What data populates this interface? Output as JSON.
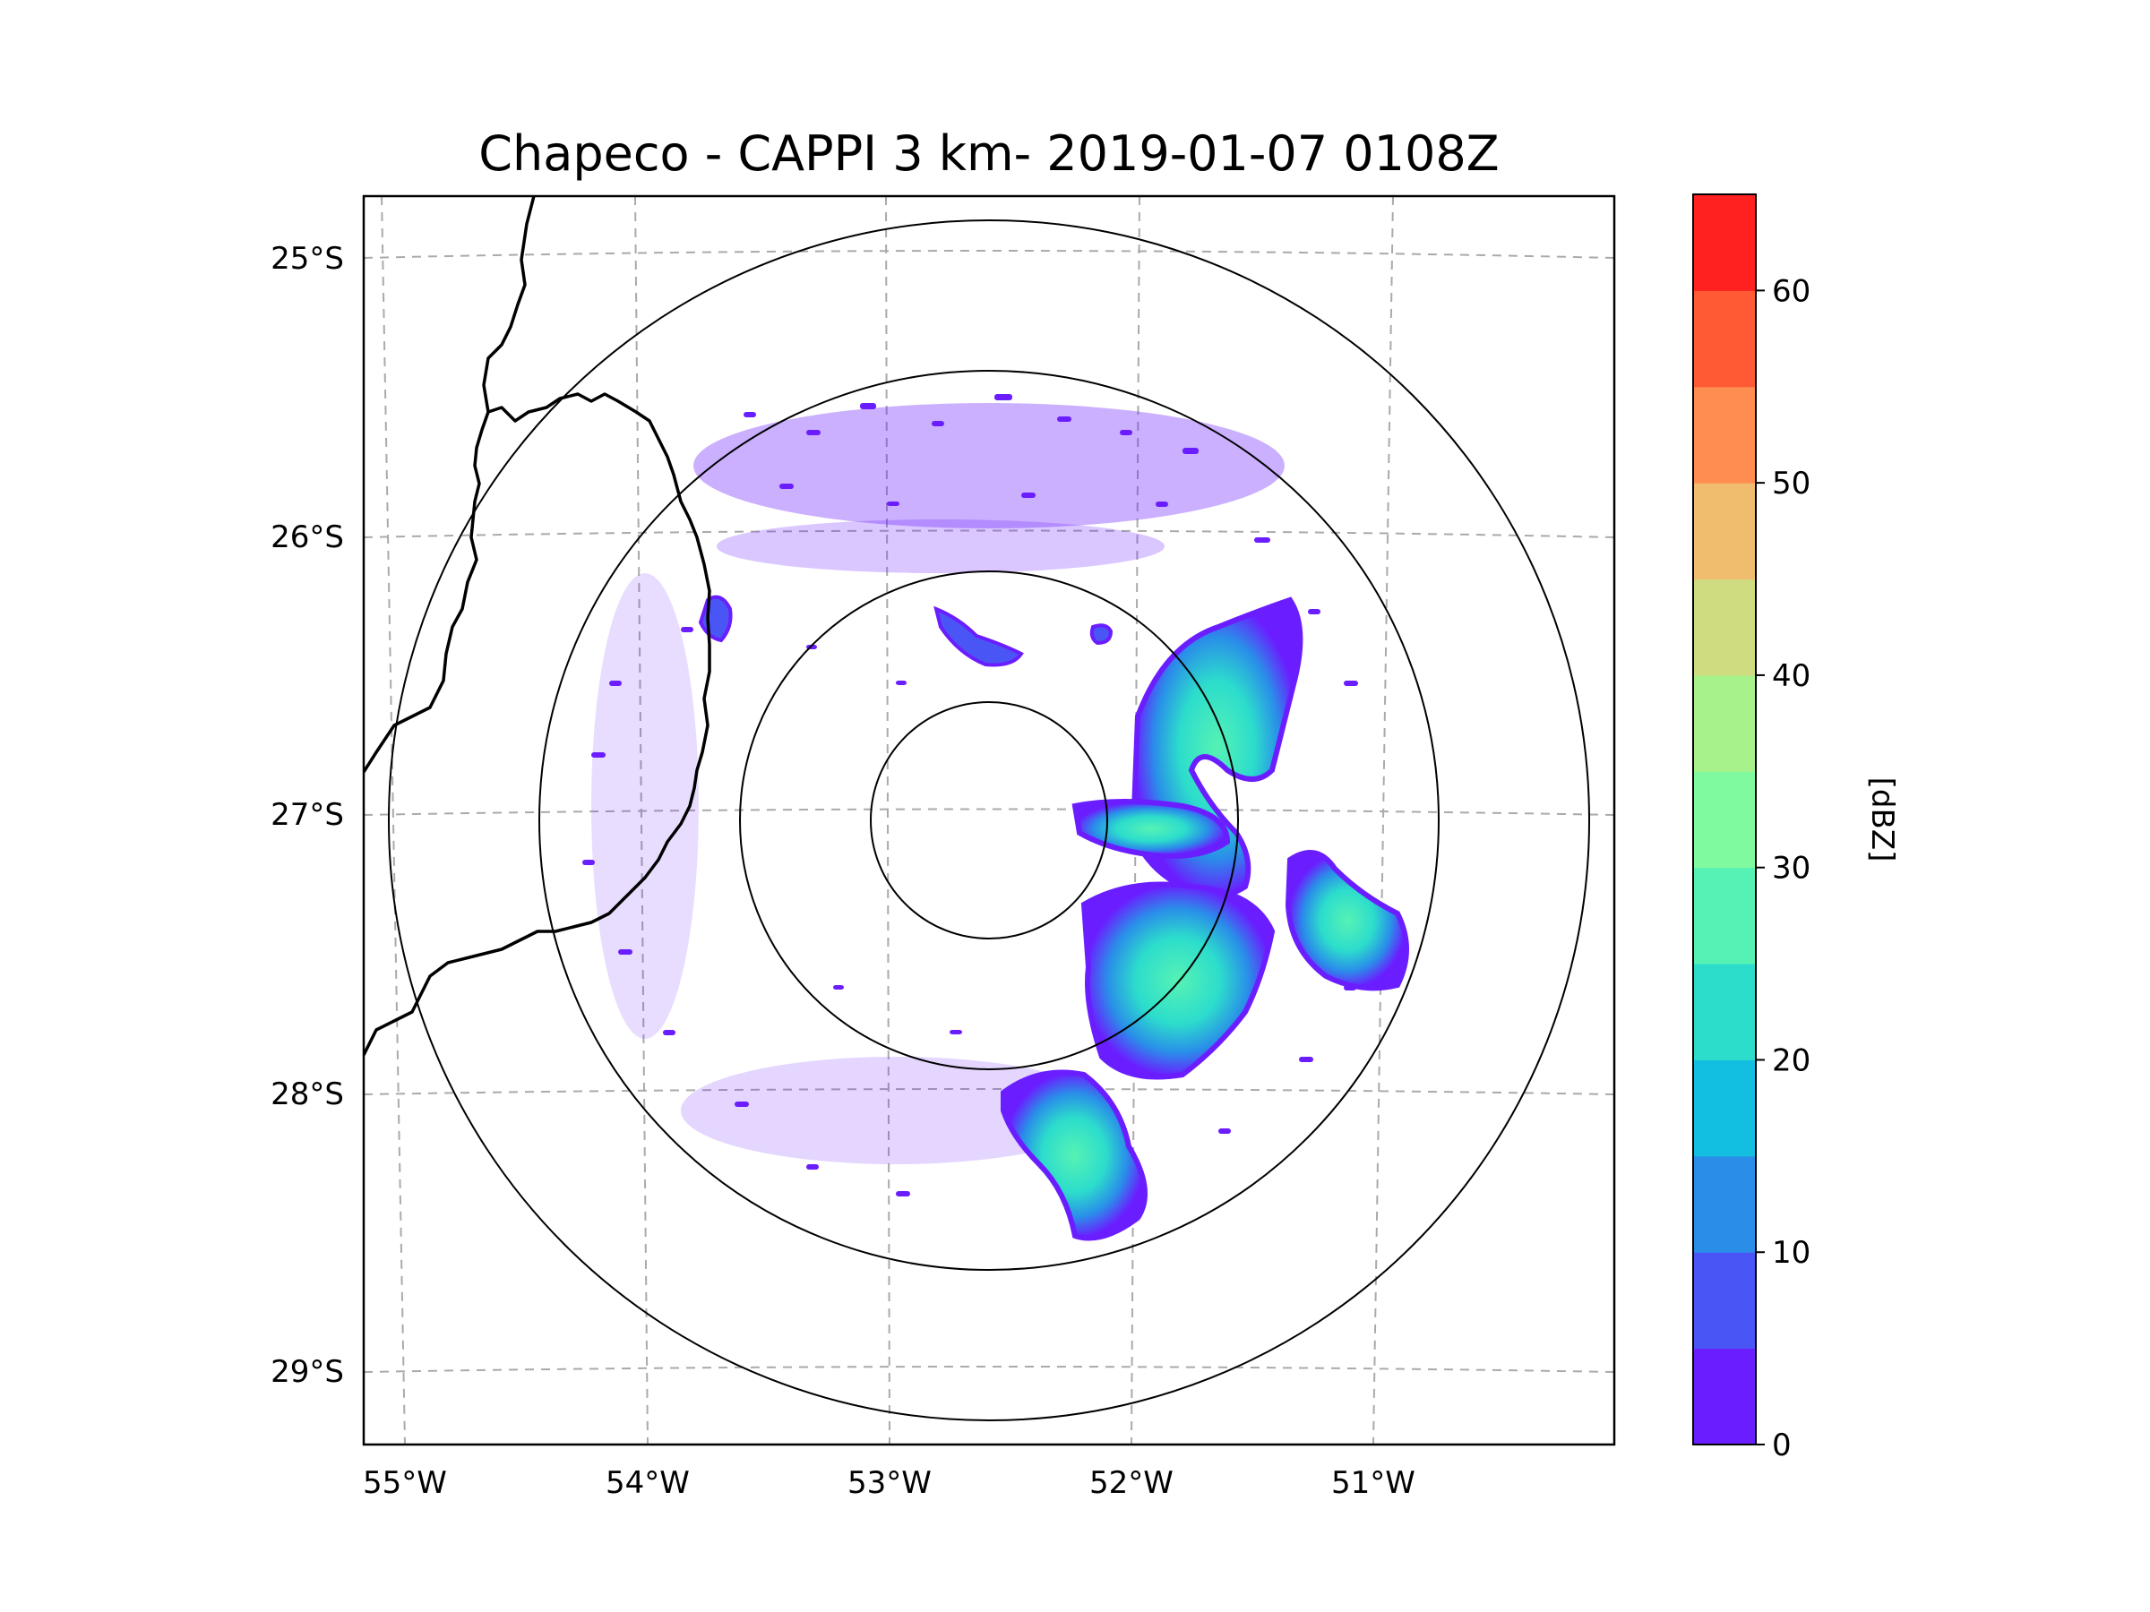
{
  "figure": {
    "title": "Chapeco - CAPPI 3 km- 2019-01-07 0108Z"
  },
  "map": {
    "lon_ticks": [
      "55°W",
      "54°W",
      "53°W",
      "52°W",
      "51°W"
    ],
    "lat_ticks": [
      "25°S",
      "26°S",
      "27°S",
      "28°S",
      "29°S"
    ],
    "gridlines": "dashed gray"
  },
  "radar": {
    "site": "Chapeco",
    "product": "CAPPI 3 km",
    "range_rings": 4
  },
  "colorbar": {
    "label": "[dBZ]",
    "tick_labels": [
      "0",
      "10",
      "20",
      "30",
      "40",
      "50",
      "60"
    ],
    "min": 0,
    "max": 65,
    "step": 5,
    "colors": [
      "#6a1eff",
      "#4a55f5",
      "#2a8ee9",
      "#12bfe0",
      "#2cddcc",
      "#56f2b4",
      "#80fa9f",
      "#a8f28c",
      "#cfdc80",
      "#f0bc6e",
      "#ff8d50",
      "#ff5a34",
      "#ff2020"
    ]
  }
}
